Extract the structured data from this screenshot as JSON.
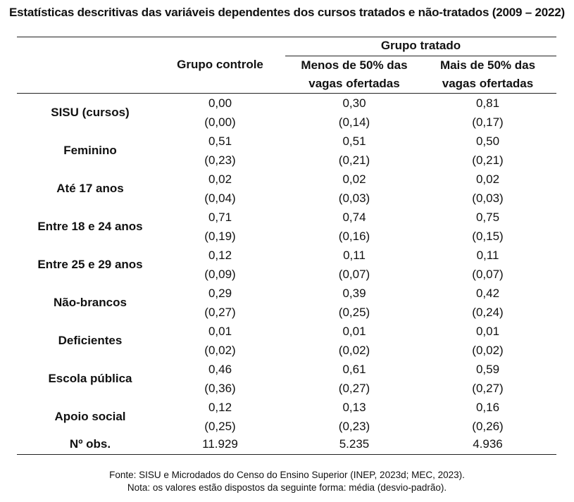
{
  "title": "Estatísticas descritivas das variáveis dependentes dos cursos tratados e não-tratados (2009 – 2022)",
  "header": {
    "group_treated": "Grupo tratado",
    "control": "Grupo controle",
    "less_line1": "Menos de 50% das",
    "less_line2": "vagas ofertadas",
    "more_line1": "Mais de 50% das",
    "more_line2": "vagas ofertadas"
  },
  "rows": [
    {
      "label": "SISU (cursos)",
      "mean": [
        "0,00",
        "0,30",
        "0,81"
      ],
      "sd": [
        "(0,00)",
        "(0,14)",
        "(0,17)"
      ]
    },
    {
      "label": "Feminino",
      "mean": [
        "0,51",
        "0,51",
        "0,50"
      ],
      "sd": [
        "(0,23)",
        "(0,21)",
        "(0,21)"
      ]
    },
    {
      "label": "Até 17 anos",
      "mean": [
        "0,02",
        "0,02",
        "0,02"
      ],
      "sd": [
        "(0,04)",
        "(0,03)",
        "(0,03)"
      ]
    },
    {
      "label": "Entre 18 e 24 anos",
      "mean": [
        "0,71",
        "0,74",
        "0,75"
      ],
      "sd": [
        "(0,19)",
        "(0,16)",
        "(0,15)"
      ]
    },
    {
      "label": "Entre 25 e 29 anos",
      "mean": [
        "0,12",
        "0,11",
        "0,11"
      ],
      "sd": [
        "(0,09)",
        "(0,07)",
        "(0,07)"
      ]
    },
    {
      "label": "Não-brancos",
      "mean": [
        "0,29",
        "0,39",
        "0,42"
      ],
      "sd": [
        "(0,27)",
        "(0,25)",
        "(0,24)"
      ]
    },
    {
      "label": "Deficientes",
      "mean": [
        "0,01",
        "0,01",
        "0,01"
      ],
      "sd": [
        "(0,02)",
        "(0,02)",
        "(0,02)"
      ]
    },
    {
      "label": "Escola pública",
      "mean": [
        "0,46",
        "0,61",
        "0,59"
      ],
      "sd": [
        "(0,36)",
        "(0,27)",
        "(0,27)"
      ]
    },
    {
      "label": "Apoio social",
      "mean": [
        "0,12",
        "0,13",
        "0,16"
      ],
      "sd": [
        "(0,25)",
        "(0,23)",
        "(0,26)"
      ]
    }
  ],
  "obs": {
    "label": "Nº obs.",
    "values": [
      "11.929",
      "5.235",
      "4.936"
    ]
  },
  "notes": {
    "source": "Fonte: SISU e Microdados do Censo do Ensino Superior (INEP, 2023d; MEC, 2023).",
    "note": "Nota: os valores estão dispostos da seguinte forma: média (desvio-padrão)."
  }
}
